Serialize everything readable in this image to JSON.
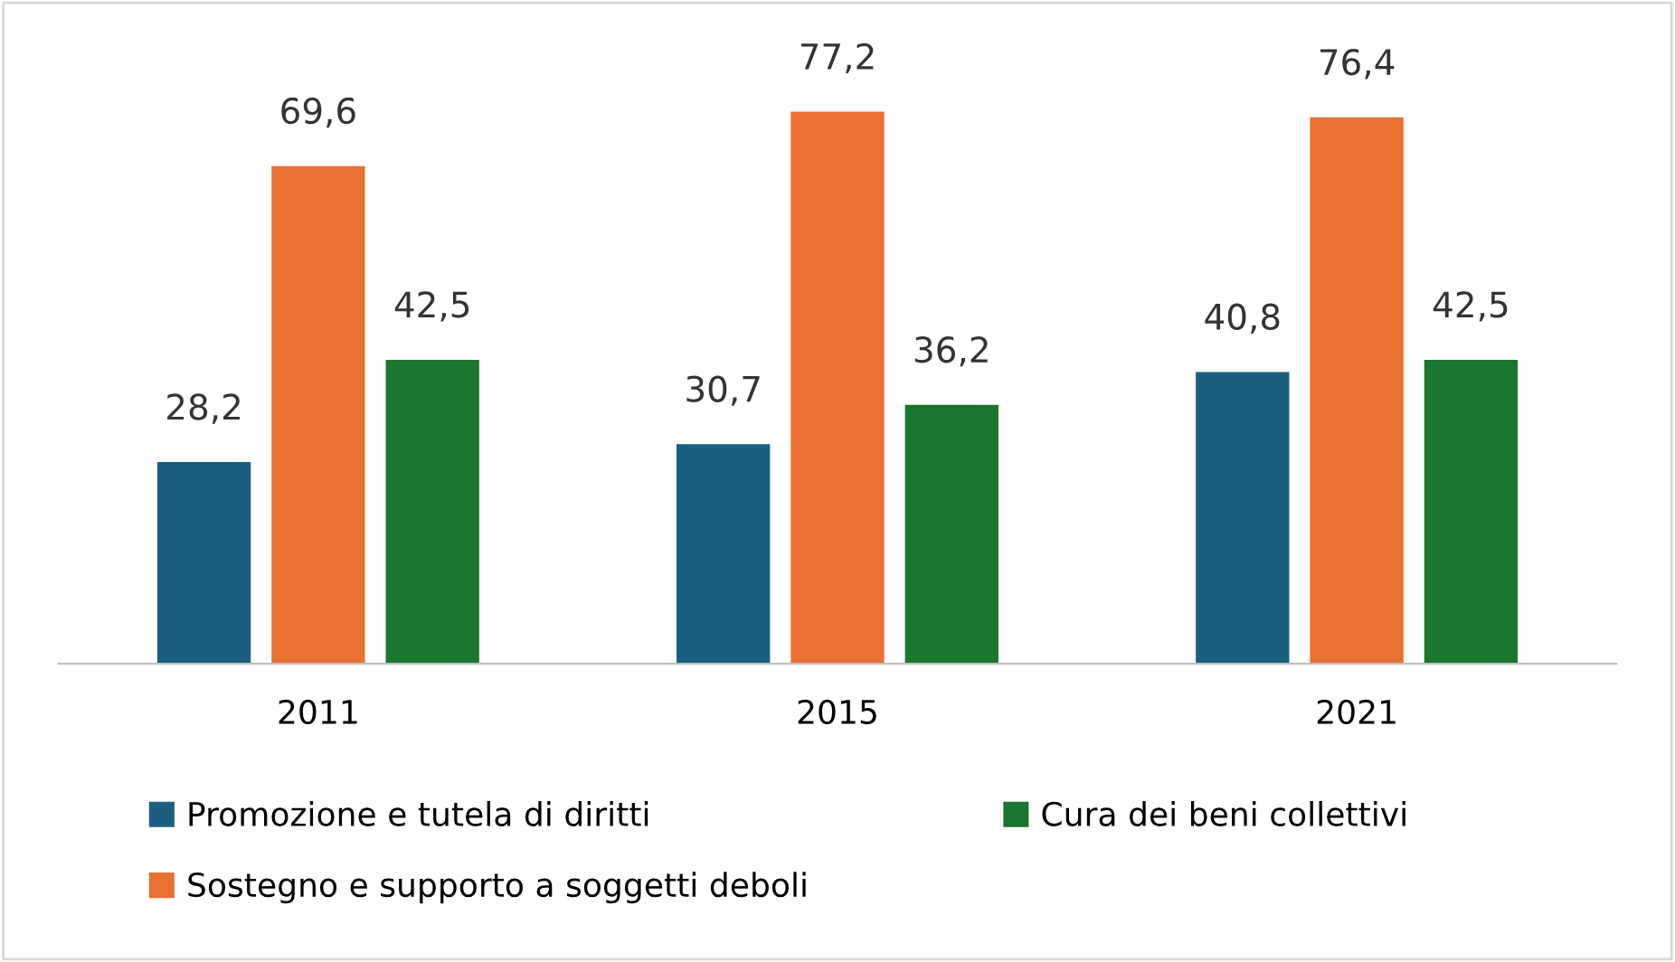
{
  "chart_data": {
    "type": "bar",
    "categories": [
      "2011",
      "2015",
      "2021"
    ],
    "series": [
      {
        "name": "Promozione e tutela di diritti",
        "color": "#1b5f80",
        "values": [
          28.2,
          30.7,
          40.8
        ],
        "value_labels": [
          "28,2",
          "30,7",
          "40,8"
        ]
      },
      {
        "name": "Sostegno e supporto a soggetti deboli",
        "color": "#e97132",
        "values": [
          69.6,
          77.2,
          76.4
        ],
        "value_labels": [
          "69,6",
          "77,2",
          "76,4"
        ]
      },
      {
        "name": "Cura dei beni collettivi",
        "color": "#19772e",
        "values": [
          42.5,
          36.2,
          42.5
        ],
        "value_labels": [
          "42,5",
          "36,2",
          "42,5"
        ]
      }
    ],
    "legend": "bottom",
    "grid": false
  }
}
